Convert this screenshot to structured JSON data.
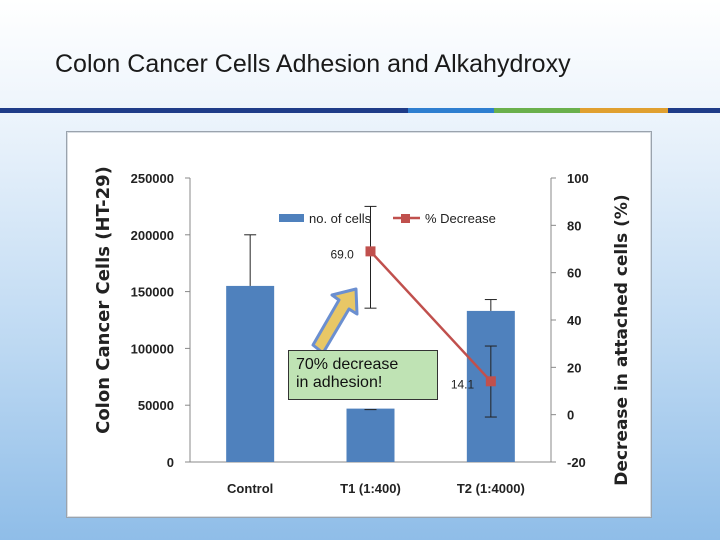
{
  "slide": {
    "title": "Colon Cancer Cells Adhesion and Alkahydroxy",
    "rule_colors": [
      "#1f3c88",
      "#2e7fd0",
      "#6ab04c",
      "#e0a030"
    ]
  },
  "annotation": {
    "lines": [
      "70% decrease",
      "in adhesion!"
    ],
    "box_color": "#bfe3b4",
    "arrow_fill": "#e8c766",
    "arrow_stroke": "#6b8fd0"
  },
  "chart_data": {
    "type": "bar+line",
    "categories": [
      "Control",
      "T1 (1:400)",
      "T2 (1:4000)"
    ],
    "left_axis": {
      "label": "Colon Cancer Cells (HT-29)",
      "range": [
        0,
        250000
      ],
      "ticks": [
        0,
        50000,
        100000,
        150000,
        200000,
        250000
      ]
    },
    "right_axis": {
      "label": "Decrease in attached cells (%)",
      "range": [
        -20,
        100
      ],
      "ticks": [
        -20,
        0,
        20,
        40,
        60,
        80,
        100
      ]
    },
    "series": [
      {
        "name": "no. of cells",
        "kind": "bar",
        "axis": "left",
        "color": "#4f81bd",
        "values": [
          155000,
          47000,
          133000
        ],
        "error_high": [
          200000,
          47000,
          143000
        ],
        "error_low": [
          155000,
          47000,
          133000
        ]
      },
      {
        "name": "% Decrease",
        "kind": "line",
        "axis": "right",
        "color": "#c0504d",
        "points": [
          {
            "category": "T1 (1:400)",
            "value": 69.0,
            "label": "69.0",
            "error_high": 88,
            "error_low": 45
          },
          {
            "category": "T2 (1:4000)",
            "value": 14.1,
            "label": "14.1",
            "error_high": 29,
            "error_low": -1
          }
        ]
      }
    ],
    "legend_position": "top-center",
    "grid": false
  }
}
